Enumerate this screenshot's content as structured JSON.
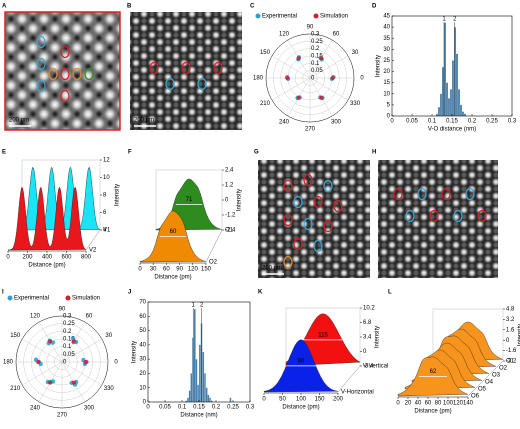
{
  "panels": {
    "A": {
      "type": "image",
      "label": "A",
      "scale_bar": "200 pm"
    },
    "B": {
      "type": "image",
      "label": "B",
      "scale_bar": "200 pm"
    },
    "C": {
      "type": "polar",
      "label": "C",
      "rlim": [
        0,
        0.3
      ],
      "rticks": [
        0,
        0.05,
        0.1,
        0.15,
        0.2,
        0.25,
        0.3
      ],
      "angle_ticks": [
        0,
        30,
        60,
        90,
        120,
        150,
        180,
        210,
        240,
        270,
        300,
        330
      ],
      "series": [
        {
          "name": "Experimental",
          "color": "#2f9fd8",
          "angles": [
            358,
            2,
            58,
            62,
            118,
            122,
            178,
            182,
            238,
            242,
            298,
            302
          ],
          "r": [
            0.15,
            0.16,
            0.15,
            0.155,
            0.16,
            0.15,
            0.155,
            0.15,
            0.16,
            0.15,
            0.15,
            0.16
          ]
        },
        {
          "name": "Simulation",
          "color": "#d62027",
          "angles": [
            0,
            60,
            120,
            180,
            240,
            300
          ],
          "r": [
            0.155,
            0.155,
            0.155,
            0.155,
            0.155,
            0.155
          ]
        }
      ]
    },
    "D": {
      "type": "histogram",
      "label": "D",
      "xlabel": "V-O distance (nm)",
      "ylabel": "Intensity",
      "color": "#4a7fa7",
      "xlim": [
        0,
        0.3
      ],
      "xticks": [
        0,
        0.05,
        0.1,
        0.15,
        0.2,
        0.25,
        0.3
      ],
      "ylim": [
        0,
        45
      ],
      "yticks": [
        0,
        5,
        10,
        15,
        20,
        25,
        30,
        35,
        40,
        45
      ],
      "bins": [
        0.11,
        0.115,
        0.12,
        0.125,
        0.13,
        0.135,
        0.14,
        0.145,
        0.15,
        0.155,
        0.16,
        0.165,
        0.17,
        0.175,
        0.18,
        0.185
      ],
      "counts": [
        1,
        4,
        10,
        22,
        42,
        15,
        8,
        12,
        25,
        40,
        28,
        12,
        5,
        2,
        1
      ],
      "peak_labels": [
        "1",
        "2"
      ],
      "peak_positions": [
        0.13,
        0.157
      ]
    },
    "E": {
      "type": "ridge",
      "label": "E",
      "xlabel": "Distance (pm)",
      "zlabel": "Intensity",
      "xticks": [
        0,
        200,
        400,
        600,
        800
      ],
      "zlim": [
        4,
        12
      ],
      "zticks": [
        4,
        6,
        8,
        10,
        12
      ],
      "series": [
        {
          "name": "V1",
          "color": "#19e3f5"
        },
        {
          "name": "V2",
          "color": "#e8171b"
        }
      ]
    },
    "F": {
      "type": "ridge",
      "label": "F",
      "xlabel": "Distance (pm)",
      "zlabel": "Intensity",
      "xticks": [
        0,
        30,
        60,
        90,
        120,
        150
      ],
      "zlim": [
        -2.4,
        2.4
      ],
      "zticks": [
        -2.4,
        -1.2,
        0,
        1.2,
        2.4
      ],
      "series": [
        {
          "name": "O1",
          "color": "#2e8b1e",
          "width": 71
        },
        {
          "name": "O2",
          "color": "#f08a00",
          "width": 60
        }
      ]
    },
    "G": {
      "type": "image",
      "label": "G",
      "scale_bar": "200 pm"
    },
    "H": {
      "type": "image",
      "label": "H"
    },
    "I": {
      "type": "polar",
      "label": "I",
      "rlim": [
        0,
        0.3
      ],
      "rticks": [
        0,
        0.05,
        0.1,
        0.15,
        0.2,
        0.25,
        0.3
      ],
      "angle_ticks": [
        0,
        30,
        60,
        90,
        120,
        150,
        180,
        210,
        240,
        270,
        300,
        330
      ],
      "series": [
        {
          "name": "Experimental",
          "color": "#2f9fd8",
          "angles": [
            355,
            0,
            5,
            55,
            60,
            65,
            115,
            120,
            125,
            175,
            180,
            185,
            235,
            240,
            245,
            295,
            300,
            305
          ],
          "r": [
            0.15,
            0.16,
            0.14,
            0.16,
            0.15,
            0.17,
            0.14,
            0.16,
            0.15,
            0.17,
            0.15,
            0.14,
            0.16,
            0.15,
            0.14,
            0.15,
            0.17,
            0.16
          ]
        },
        {
          "name": "Simulation",
          "color": "#d62027",
          "angles": [
            0,
            60,
            120,
            180,
            240,
            300
          ],
          "r": [
            0.155,
            0.155,
            0.155,
            0.155,
            0.155,
            0.155
          ]
        }
      ]
    },
    "J": {
      "type": "histogram",
      "label": "J",
      "xlabel": "Distance (nm)",
      "ylabel": "Intensity",
      "color": "#4a7fa7",
      "xlim": [
        0,
        0.3
      ],
      "xticks": [
        0,
        0.05,
        0.1,
        0.15,
        0.2,
        0.25,
        0.3
      ],
      "ylim": [
        0,
        70
      ],
      "yticks": [
        0,
        10,
        20,
        30,
        40,
        50,
        60,
        70
      ],
      "bins": [
        0.11,
        0.115,
        0.12,
        0.125,
        0.13,
        0.135,
        0.14,
        0.145,
        0.15,
        0.155,
        0.16,
        0.165,
        0.17,
        0.175,
        0.18,
        0.185,
        0.19,
        0.195,
        0.2,
        0.205,
        0.21,
        0.215,
        0.22,
        0.225,
        0.23,
        0.235,
        0.24,
        0.245,
        0.25
      ],
      "counts": [
        1,
        3,
        8,
        20,
        45,
        65,
        30,
        12,
        40,
        55,
        35,
        20,
        10,
        5,
        3,
        1,
        0,
        0,
        0,
        0,
        0,
        0,
        0,
        0,
        0,
        0,
        3,
        0
      ],
      "peak_labels": [
        "1",
        "2"
      ],
      "peak_positions": [
        0.133,
        0.158
      ]
    },
    "K": {
      "type": "ridge",
      "label": "K",
      "xlabel": "Distance (pm)",
      "zlabel": "Intensity",
      "xticks": [
        0,
        50,
        100,
        150,
        200
      ],
      "zlim": [
        -3.4,
        10.2
      ],
      "zticks": [
        -3.4,
        0,
        3.4,
        6.8,
        10.2
      ],
      "series": [
        {
          "name": "V-Vertical",
          "color": "#f21010",
          "width": 115
        },
        {
          "name": "V-Horizontal",
          "color": "#0a22e8",
          "width": 86
        }
      ]
    },
    "L": {
      "type": "ridge",
      "label": "L",
      "xlabel": "Distance (pm)",
      "zlabel": "Intensity",
      "xticks": [
        0,
        20,
        40,
        60,
        80,
        100,
        120,
        140
      ],
      "zlim": [
        -3.2,
        4.8
      ],
      "zticks": [
        -3.2,
        -1.6,
        0,
        1.6,
        3.2,
        4.8
      ],
      "series": [
        {
          "name": "O1",
          "color": "#f7941d"
        },
        {
          "name": "O2",
          "color": "#f7941d"
        },
        {
          "name": "O3",
          "color": "#f7941d"
        },
        {
          "name": "O4",
          "color": "#f7941d"
        },
        {
          "name": "O5",
          "color": "#f7941d"
        },
        {
          "name": "O6",
          "color": "#f7941d",
          "width": 62
        }
      ]
    }
  }
}
